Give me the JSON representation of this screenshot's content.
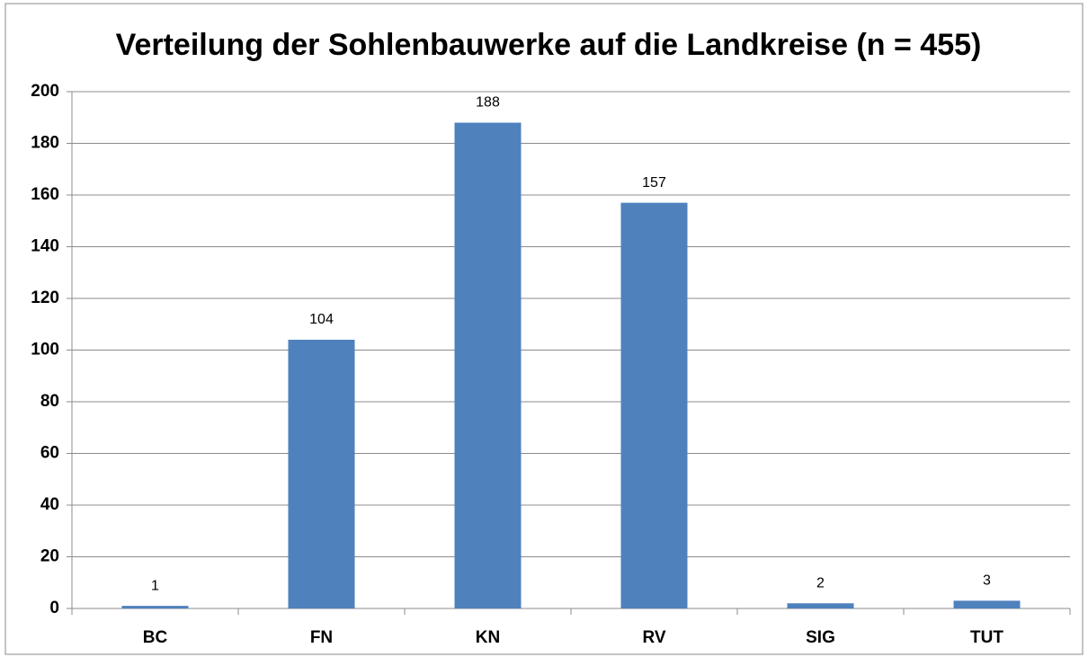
{
  "chart_data": {
    "type": "bar",
    "title": "Verteilung der Sohlenbauwerke auf die Landkreise (n = 455)",
    "categories": [
      "BC",
      "FN",
      "KN",
      "RV",
      "SIG",
      "TUT"
    ],
    "values": [
      1,
      104,
      188,
      157,
      2,
      3
    ],
    "color": "#4f81bd",
    "ylim": [
      0,
      200
    ],
    "yticks": [
      0,
      20,
      40,
      60,
      80,
      100,
      120,
      140,
      160,
      180,
      200
    ],
    "grid": true
  }
}
